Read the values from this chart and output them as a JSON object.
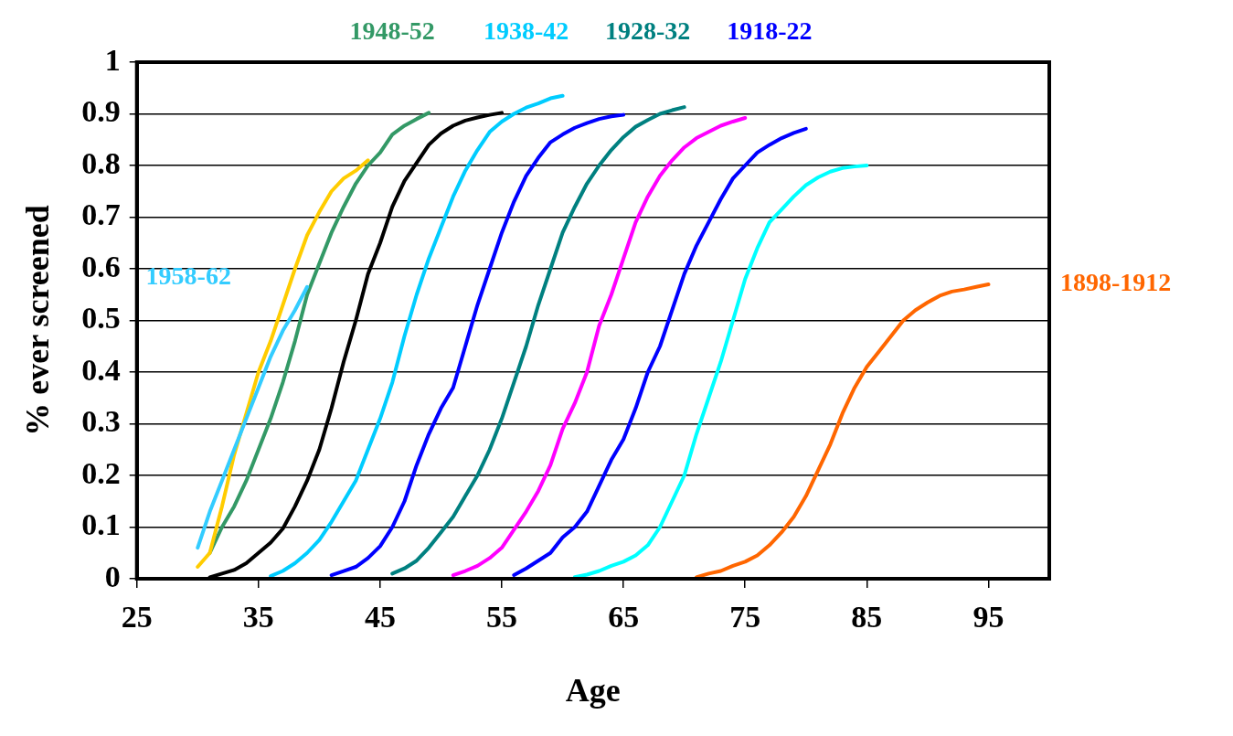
{
  "chart_data": {
    "type": "line",
    "xlabel": "Age",
    "ylabel": "% ever screened",
    "xlim": [
      25,
      100
    ],
    "xticks": [
      25,
      35,
      45,
      55,
      65,
      75,
      85,
      95
    ],
    "ylim": [
      0,
      1
    ],
    "yticks": [
      0,
      0.1,
      0.2,
      0.3,
      0.4,
      0.5,
      0.6,
      0.7,
      0.8,
      0.9,
      1
    ],
    "grid": "y",
    "legend": false,
    "marker": "none",
    "line_style": "solid",
    "series": [
      {
        "name": "1958-62",
        "color": "#33ccff",
        "x": [
          30,
          31,
          32,
          33,
          34,
          35,
          36,
          37,
          38,
          39
        ],
        "values": [
          0.06,
          0.13,
          0.19,
          0.25,
          0.31,
          0.37,
          0.43,
          0.48,
          0.52,
          0.565
        ]
      },
      {
        "color": "#ffcc00",
        "x": [
          30,
          31,
          32,
          33,
          34,
          35,
          36,
          37,
          38,
          39,
          40,
          41,
          42,
          43,
          44
        ],
        "values": [
          0.023,
          0.05,
          0.14,
          0.24,
          0.32,
          0.4,
          0.46,
          0.53,
          0.6,
          0.665,
          0.71,
          0.75,
          0.775,
          0.79,
          0.81
        ]
      },
      {
        "name": "1948-52",
        "color": "#339966",
        "x": [
          31,
          32,
          33,
          34,
          35,
          36,
          37,
          38,
          39,
          40,
          41,
          42,
          43,
          44,
          45,
          46,
          47,
          48,
          49
        ],
        "values": [
          0.05,
          0.1,
          0.14,
          0.19,
          0.25,
          0.31,
          0.38,
          0.46,
          0.55,
          0.61,
          0.67,
          0.72,
          0.765,
          0.8,
          0.825,
          0.86,
          0.877,
          0.89,
          0.902
        ]
      },
      {
        "color": "#000000",
        "x": [
          31,
          32,
          33,
          34,
          35,
          36,
          37,
          38,
          39,
          40,
          41,
          42,
          43,
          44,
          45,
          46,
          47,
          48,
          49,
          50,
          51,
          52,
          53,
          54,
          55
        ],
        "values": [
          0.003,
          0.01,
          0.017,
          0.03,
          0.05,
          0.07,
          0.097,
          0.14,
          0.19,
          0.25,
          0.33,
          0.42,
          0.5,
          0.59,
          0.65,
          0.72,
          0.77,
          0.805,
          0.84,
          0.862,
          0.877,
          0.887,
          0.893,
          0.898,
          0.902
        ]
      },
      {
        "name": "1938-42",
        "color": "#00ccff",
        "x": [
          36,
          37,
          38,
          39,
          40,
          41,
          42,
          43,
          44,
          45,
          46,
          47,
          48,
          49,
          50,
          51,
          52,
          53,
          54,
          55,
          56,
          57,
          58,
          59,
          60
        ],
        "values": [
          0.005,
          0.015,
          0.03,
          0.05,
          0.075,
          0.11,
          0.15,
          0.19,
          0.25,
          0.31,
          0.38,
          0.47,
          0.55,
          0.62,
          0.68,
          0.74,
          0.79,
          0.83,
          0.865,
          0.885,
          0.9,
          0.912,
          0.92,
          0.93,
          0.935
        ]
      },
      {
        "color": "#0000ff",
        "x": [
          41,
          42,
          43,
          44,
          45,
          46,
          47,
          48,
          49,
          50,
          51,
          52,
          53,
          54,
          55,
          56,
          57,
          58,
          59,
          60,
          61,
          62,
          63,
          64,
          65
        ],
        "values": [
          0.007,
          0.015,
          0.023,
          0.04,
          0.063,
          0.1,
          0.15,
          0.22,
          0.28,
          0.33,
          0.37,
          0.45,
          0.53,
          0.6,
          0.67,
          0.73,
          0.78,
          0.815,
          0.845,
          0.86,
          0.873,
          0.882,
          0.89,
          0.895,
          0.898
        ]
      },
      {
        "name": "1928-32",
        "color": "#008080",
        "x": [
          46,
          47,
          48,
          49,
          50,
          51,
          52,
          53,
          54,
          55,
          56,
          57,
          58,
          59,
          60,
          61,
          62,
          63,
          64,
          65,
          66,
          67,
          68,
          69,
          70
        ],
        "values": [
          0.01,
          0.02,
          0.035,
          0.06,
          0.09,
          0.12,
          0.16,
          0.2,
          0.25,
          0.31,
          0.38,
          0.45,
          0.53,
          0.6,
          0.67,
          0.72,
          0.765,
          0.8,
          0.83,
          0.855,
          0.875,
          0.888,
          0.9,
          0.907,
          0.913
        ]
      },
      {
        "color": "#ff00ff",
        "x": [
          51,
          52,
          53,
          54,
          55,
          56,
          57,
          58,
          59,
          60,
          61,
          62,
          63,
          64,
          65,
          66,
          67,
          68,
          69,
          70,
          71,
          72,
          73,
          74,
          75
        ],
        "values": [
          0.007,
          0.015,
          0.025,
          0.04,
          0.06,
          0.095,
          0.13,
          0.17,
          0.22,
          0.29,
          0.34,
          0.4,
          0.49,
          0.55,
          0.62,
          0.69,
          0.74,
          0.78,
          0.81,
          0.835,
          0.853,
          0.865,
          0.877,
          0.885,
          0.892
        ]
      },
      {
        "name": "1918-22",
        "color": "#0000ff",
        "x": [
          56,
          57,
          58,
          59,
          60,
          61,
          62,
          63,
          64,
          65,
          66,
          67,
          68,
          69,
          70,
          71,
          72,
          73,
          74,
          75,
          76,
          77,
          78,
          79,
          80
        ],
        "values": [
          0.007,
          0.02,
          0.035,
          0.05,
          0.08,
          0.1,
          0.13,
          0.18,
          0.23,
          0.27,
          0.33,
          0.4,
          0.45,
          0.52,
          0.59,
          0.645,
          0.69,
          0.735,
          0.775,
          0.8,
          0.825,
          0.84,
          0.853,
          0.863,
          0.871
        ]
      },
      {
        "color": "#00ffff",
        "x": [
          61,
          62,
          63,
          64,
          65,
          66,
          67,
          68,
          69,
          70,
          71,
          72,
          73,
          74,
          75,
          76,
          77,
          78,
          79,
          80,
          81,
          82,
          83,
          84,
          85
        ],
        "values": [
          0.003,
          0.008,
          0.015,
          0.025,
          0.033,
          0.045,
          0.065,
          0.1,
          0.15,
          0.2,
          0.28,
          0.35,
          0.42,
          0.5,
          0.58,
          0.64,
          0.69,
          0.715,
          0.74,
          0.762,
          0.777,
          0.788,
          0.795,
          0.798,
          0.8
        ]
      },
      {
        "name": "1898-1912",
        "color": "#ff6600",
        "x": [
          71,
          72,
          73,
          74,
          75,
          76,
          77,
          78,
          79,
          80,
          81,
          82,
          83,
          84,
          85,
          86,
          87,
          88,
          89,
          90,
          91,
          92,
          93,
          94,
          95
        ],
        "values": [
          0.003,
          0.01,
          0.015,
          0.025,
          0.033,
          0.045,
          0.065,
          0.09,
          0.12,
          0.16,
          0.21,
          0.26,
          0.32,
          0.37,
          0.41,
          0.44,
          0.47,
          0.5,
          0.52,
          0.535,
          0.548,
          0.556,
          0.56,
          0.565,
          0.57
        ]
      }
    ]
  }
}
